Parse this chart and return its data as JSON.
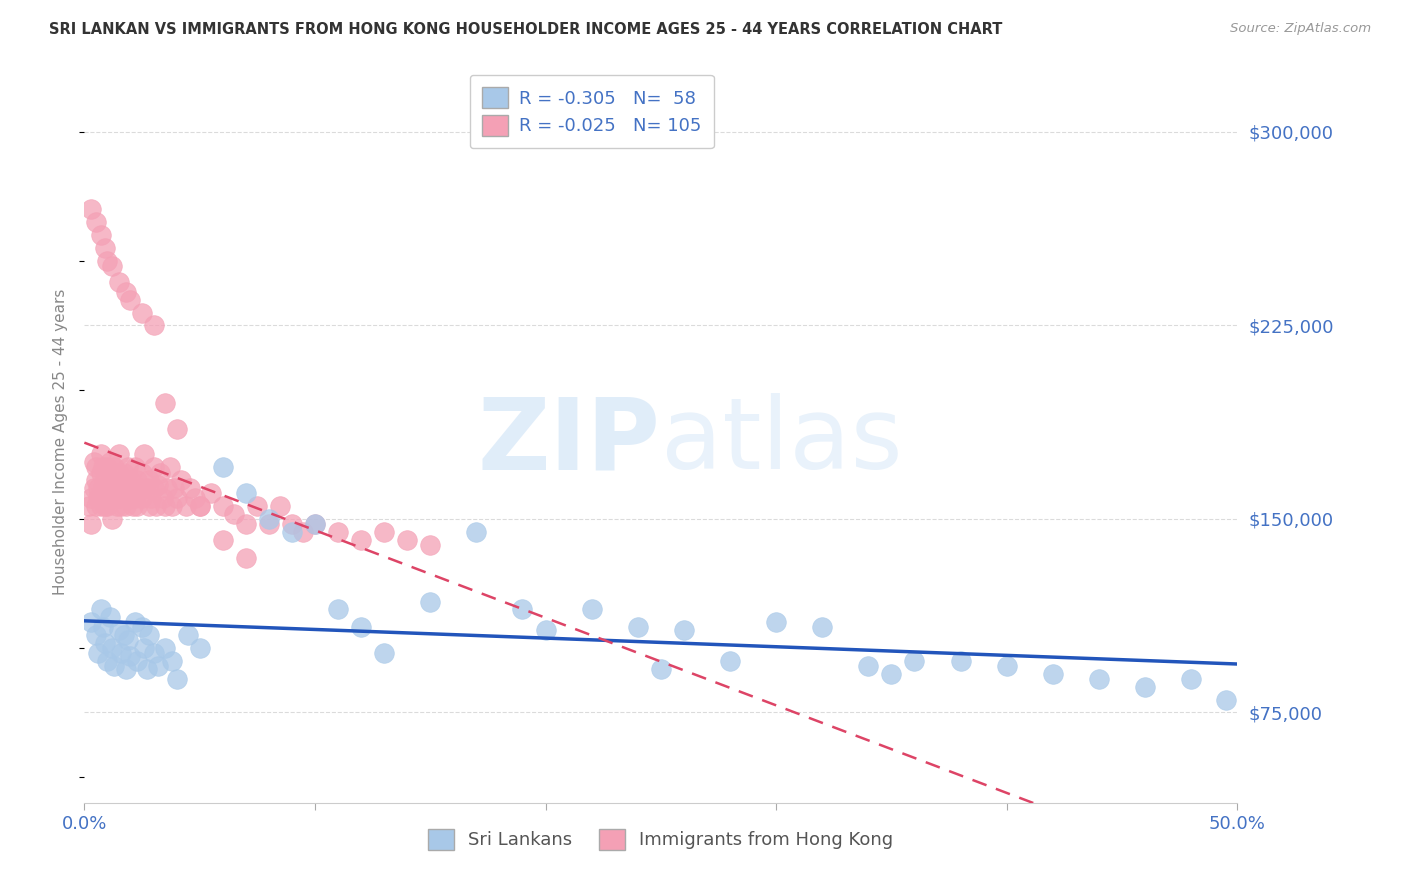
{
  "title": "SRI LANKAN VS IMMIGRANTS FROM HONG KONG HOUSEHOLDER INCOME AGES 25 - 44 YEARS CORRELATION CHART",
  "source": "Source: ZipAtlas.com",
  "ylabel": "Householder Income Ages 25 - 44 years",
  "yticks": [
    75000,
    150000,
    225000,
    300000
  ],
  "ytick_labels": [
    "$75,000",
    "$150,000",
    "$225,000",
    "$300,000"
  ],
  "xlim": [
    0.0,
    0.5
  ],
  "ylim": [
    40000,
    320000
  ],
  "series1_label": "Sri Lankans",
  "series2_label": "Immigrants from Hong Kong",
  "series1_R": "-0.305",
  "series1_N": "58",
  "series2_R": "-0.025",
  "series2_N": "105",
  "series1_color": "#a8c8e8",
  "series2_color": "#f4a0b5",
  "series1_line_color": "#2255bb",
  "series2_line_color": "#dd4466",
  "watermark": "ZIPatlas",
  "background_color": "#ffffff",
  "grid_color": "#cccccc",
  "title_color": "#333333",
  "tick_color": "#4472c4",
  "series1_x": [
    0.003,
    0.005,
    0.006,
    0.007,
    0.008,
    0.009,
    0.01,
    0.011,
    0.012,
    0.013,
    0.015,
    0.016,
    0.017,
    0.018,
    0.019,
    0.02,
    0.022,
    0.023,
    0.025,
    0.026,
    0.027,
    0.028,
    0.03,
    0.032,
    0.035,
    0.038,
    0.04,
    0.045,
    0.05,
    0.06,
    0.07,
    0.08,
    0.09,
    0.1,
    0.11,
    0.12,
    0.13,
    0.15,
    0.17,
    0.19,
    0.2,
    0.22,
    0.24,
    0.26,
    0.28,
    0.3,
    0.32,
    0.34,
    0.36,
    0.38,
    0.4,
    0.42,
    0.44,
    0.46,
    0.48,
    0.495,
    0.25,
    0.35
  ],
  "series1_y": [
    110000,
    105000,
    98000,
    115000,
    108000,
    102000,
    95000,
    112000,
    100000,
    93000,
    107000,
    98000,
    105000,
    92000,
    103000,
    97000,
    110000,
    95000,
    108000,
    100000,
    92000,
    105000,
    98000,
    93000,
    100000,
    95000,
    88000,
    105000,
    100000,
    170000,
    160000,
    150000,
    145000,
    148000,
    115000,
    108000,
    98000,
    118000,
    145000,
    115000,
    107000,
    115000,
    108000,
    107000,
    95000,
    110000,
    108000,
    93000,
    95000,
    95000,
    93000,
    90000,
    88000,
    85000,
    88000,
    80000,
    92000,
    90000
  ],
  "series2_x": [
    0.002,
    0.003,
    0.003,
    0.004,
    0.004,
    0.005,
    0.005,
    0.005,
    0.006,
    0.006,
    0.007,
    0.007,
    0.007,
    0.008,
    0.008,
    0.008,
    0.009,
    0.009,
    0.01,
    0.01,
    0.01,
    0.011,
    0.011,
    0.012,
    0.012,
    0.012,
    0.013,
    0.013,
    0.014,
    0.014,
    0.015,
    0.015,
    0.015,
    0.016,
    0.016,
    0.017,
    0.017,
    0.018,
    0.018,
    0.019,
    0.019,
    0.02,
    0.02,
    0.021,
    0.021,
    0.022,
    0.022,
    0.023,
    0.023,
    0.024,
    0.025,
    0.025,
    0.026,
    0.027,
    0.028,
    0.028,
    0.029,
    0.03,
    0.03,
    0.031,
    0.032,
    0.033,
    0.034,
    0.035,
    0.036,
    0.037,
    0.038,
    0.039,
    0.04,
    0.042,
    0.044,
    0.046,
    0.048,
    0.05,
    0.055,
    0.06,
    0.065,
    0.07,
    0.075,
    0.08,
    0.085,
    0.09,
    0.095,
    0.1,
    0.11,
    0.12,
    0.13,
    0.14,
    0.15,
    0.003,
    0.005,
    0.007,
    0.009,
    0.01,
    0.012,
    0.015,
    0.018,
    0.02,
    0.025,
    0.03,
    0.035,
    0.04,
    0.05,
    0.06,
    0.07
  ],
  "series2_y": [
    155000,
    158000,
    148000,
    162000,
    172000,
    165000,
    155000,
    170000,
    158000,
    162000,
    168000,
    155000,
    175000,
    162000,
    170000,
    158000,
    165000,
    155000,
    160000,
    170000,
    155000,
    163000,
    172000,
    158000,
    165000,
    150000,
    162000,
    170000,
    155000,
    163000,
    168000,
    158000,
    175000,
    162000,
    155000,
    168000,
    160000,
    165000,
    155000,
    162000,
    170000,
    158000,
    165000,
    155000,
    162000,
    170000,
    158000,
    165000,
    155000,
    162000,
    168000,
    158000,
    175000,
    162000,
    155000,
    165000,
    158000,
    162000,
    170000,
    155000,
    163000,
    168000,
    158000,
    155000,
    162000,
    170000,
    155000,
    162000,
    158000,
    165000,
    155000,
    162000,
    158000,
    155000,
    160000,
    155000,
    152000,
    148000,
    155000,
    148000,
    155000,
    148000,
    145000,
    148000,
    145000,
    142000,
    145000,
    142000,
    140000,
    270000,
    265000,
    260000,
    255000,
    250000,
    248000,
    242000,
    238000,
    235000,
    230000,
    225000,
    195000,
    185000,
    155000,
    142000,
    135000
  ]
}
